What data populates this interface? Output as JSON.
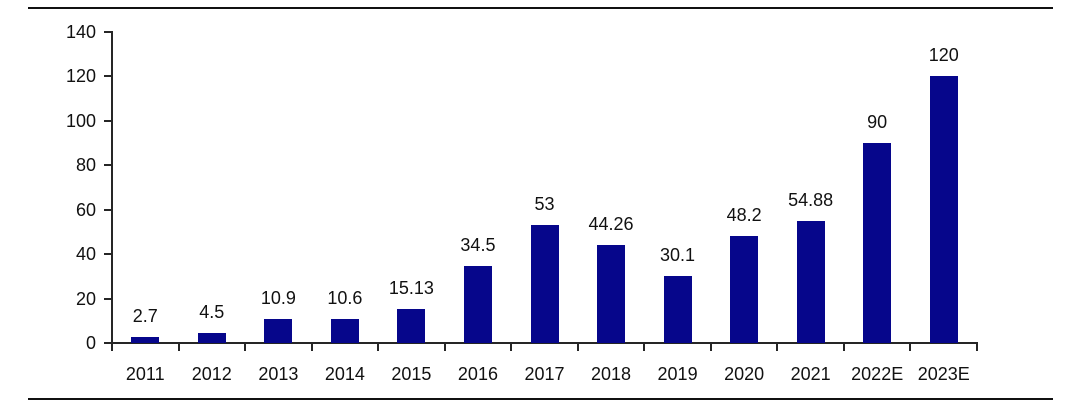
{
  "page": {
    "background": "#ffffff",
    "divider_color": "#111111"
  },
  "chart_data": {
    "type": "bar",
    "title": "",
    "xlabel": "",
    "ylabel": "",
    "categories": [
      "2011",
      "2012",
      "2013",
      "2014",
      "2015",
      "2016",
      "2017",
      "2018",
      "2019",
      "2020",
      "2021",
      "2022E",
      "2023E"
    ],
    "values": [
      2.7,
      4.5,
      10.9,
      10.6,
      15.13,
      34.5,
      53,
      44.26,
      30.1,
      48.2,
      54.88,
      90,
      120
    ],
    "value_labels": [
      "2.7",
      "4.5",
      "10.9",
      "10.6",
      "15.13",
      "34.5",
      "53",
      "44.26",
      "30.1",
      "48.2",
      "54.88",
      "90",
      "120"
    ],
    "yticks": [
      0,
      20,
      40,
      60,
      80,
      100,
      120,
      140
    ],
    "ytick_labels": [
      "0",
      "20",
      "40",
      "60",
      "80",
      "100",
      "120",
      "140"
    ],
    "ylim": [
      0,
      140
    ],
    "grid": false,
    "legend": "none",
    "bar_color": "#06068B",
    "axis_color": "#262626",
    "text_color": "#111111"
  }
}
